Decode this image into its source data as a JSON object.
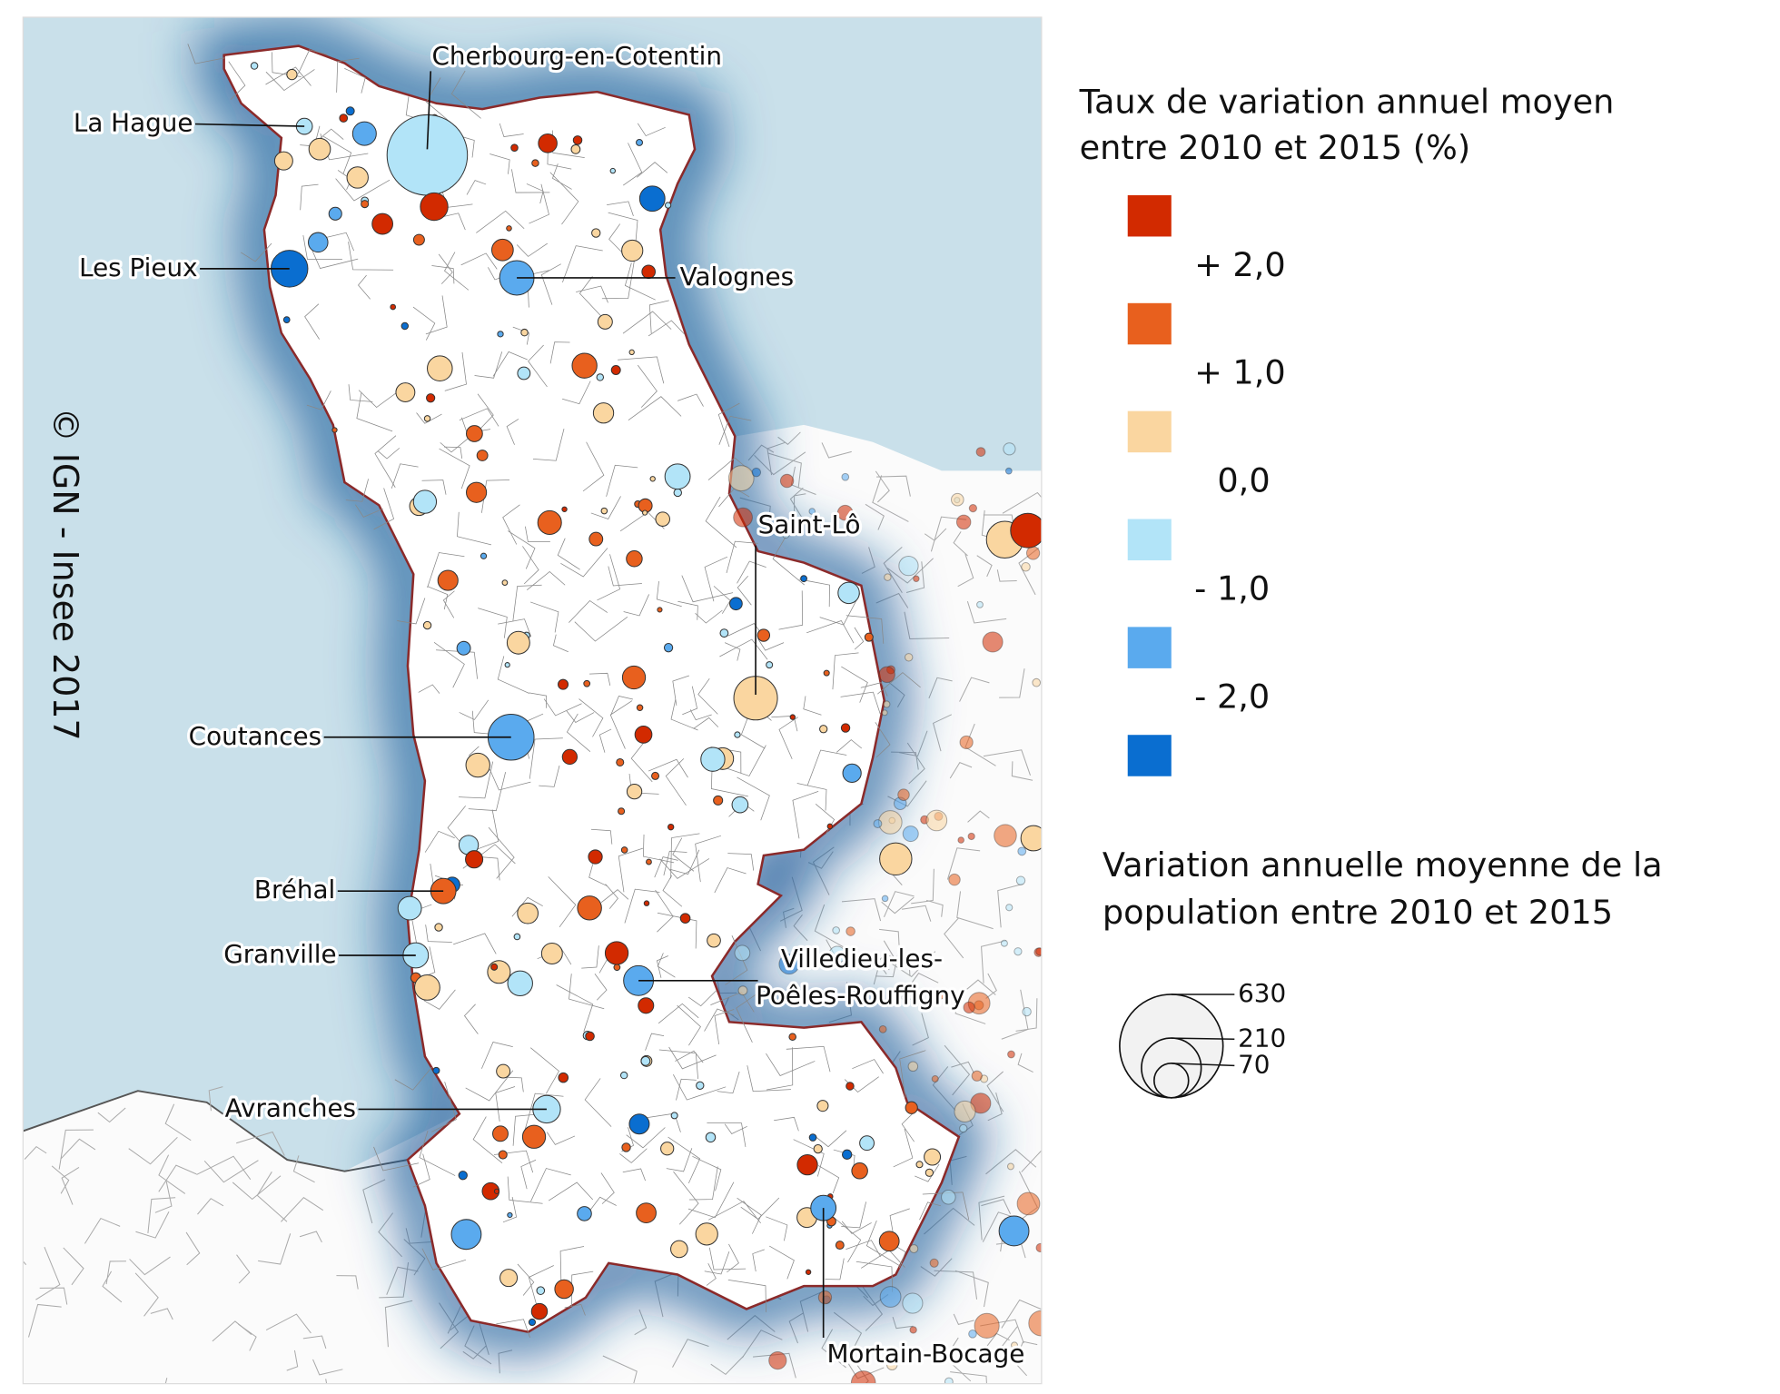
{
  "copyright": "© IGN - Insee 2017",
  "place_labels": [
    "Cherbourg-en-Cotentin",
    "La Hague",
    "Les Pieux",
    "Valognes",
    "Saint-Lô",
    "Coutances",
    "Bréhal",
    "Granville",
    "Villedieu-les-",
    "Poêles-Rouffigny",
    "Avranches",
    "Mortain-Bocage"
  ],
  "legend": {
    "title": [
      "Taux de variation annuel moyen",
      "entre 2010 et 2015 (%)"
    ],
    "colors": [
      "#d22a00",
      "#e8601e",
      "#fad6a0",
      "#b2e4f8",
      "#5aaaee",
      "#0a6ed0"
    ],
    "breaks": [
      "+ 2,0",
      "+ 1,0",
      "0,0",
      "- 1,0",
      "- 2,0"
    ]
  },
  "size_legend": {
    "title": [
      "Variation annuelle moyenne de la",
      "population entre 2010 et 2015"
    ],
    "values": [
      630,
      210,
      70
    ]
  }
}
